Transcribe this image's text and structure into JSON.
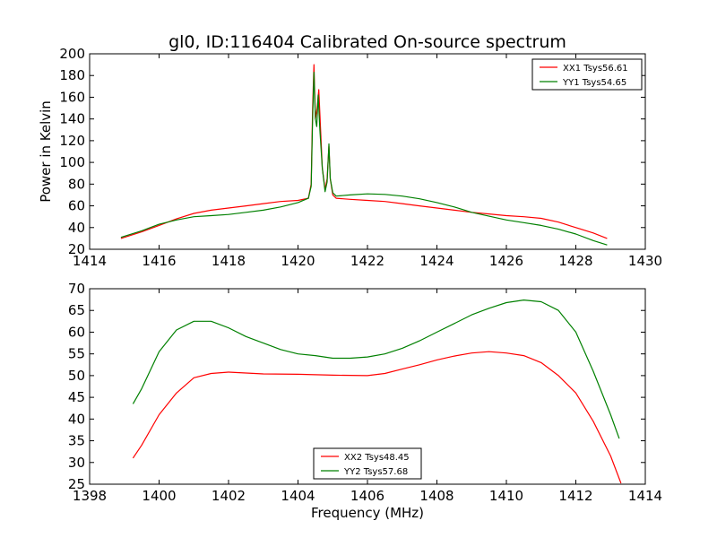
{
  "figure_title": "gl0, ID:116404 Calibrated On-source spectrum",
  "chart_data": [
    {
      "type": "line",
      "title": "gl0, ID:116404 Calibrated On-source spectrum",
      "xlabel": "",
      "ylabel": "Power in Kelvin",
      "xlim": [
        1414,
        1430
      ],
      "ylim": [
        20,
        200
      ],
      "xticks": [
        1414,
        1416,
        1418,
        1420,
        1422,
        1424,
        1426,
        1428,
        1430
      ],
      "yticks": [
        20,
        40,
        60,
        80,
        100,
        120,
        140,
        160,
        180,
        200
      ],
      "grid": false,
      "legend_position": "top-right",
      "series": [
        {
          "name": "XX1 Tsys56.61",
          "color": "#ff0000",
          "points": [
            [
              1414.9,
              30
            ],
            [
              1415.5,
              36
            ],
            [
              1416,
              42
            ],
            [
              1416.5,
              48
            ],
            [
              1417,
              53
            ],
            [
              1417.5,
              56
            ],
            [
              1418,
              58
            ],
            [
              1418.5,
              60
            ],
            [
              1419,
              62
            ],
            [
              1419.5,
              64
            ],
            [
              1420,
              65
            ],
            [
              1420.3,
              67
            ],
            [
              1420.38,
              80
            ],
            [
              1420.42,
              150
            ],
            [
              1420.46,
              190
            ],
            [
              1420.5,
              140
            ],
            [
              1420.55,
              150
            ],
            [
              1420.6,
              167
            ],
            [
              1420.65,
              130
            ],
            [
              1420.7,
              95
            ],
            [
              1420.78,
              75
            ],
            [
              1420.84,
              85
            ],
            [
              1420.89,
              115
            ],
            [
              1420.93,
              85
            ],
            [
              1421,
              70
            ],
            [
              1421.1,
              67
            ],
            [
              1421.5,
              66
            ],
            [
              1422,
              65
            ],
            [
              1422.5,
              64
            ],
            [
              1423,
              62
            ],
            [
              1423.5,
              60
            ],
            [
              1424,
              58
            ],
            [
              1424.5,
              56
            ],
            [
              1425,
              54
            ],
            [
              1425.5,
              52.5
            ],
            [
              1426,
              51
            ],
            [
              1426.5,
              50
            ],
            [
              1427,
              48.5
            ],
            [
              1427.5,
              45
            ],
            [
              1428,
              40
            ],
            [
              1428.5,
              35
            ],
            [
              1428.9,
              30
            ]
          ]
        },
        {
          "name": "YY1 Tsys54.65",
          "color": "#008000",
          "points": [
            [
              1414.9,
              31
            ],
            [
              1415.5,
              37
            ],
            [
              1416,
              43
            ],
            [
              1416.5,
              47
            ],
            [
              1417,
              50
            ],
            [
              1417.5,
              51
            ],
            [
              1418,
              52
            ],
            [
              1418.5,
              54
            ],
            [
              1419,
              56
            ],
            [
              1419.5,
              59
            ],
            [
              1420,
              63
            ],
            [
              1420.3,
              67
            ],
            [
              1420.38,
              78
            ],
            [
              1420.42,
              140
            ],
            [
              1420.46,
              183
            ],
            [
              1420.5,
              140
            ],
            [
              1420.54,
              133
            ],
            [
              1420.58,
              162
            ],
            [
              1420.63,
              130
            ],
            [
              1420.7,
              95
            ],
            [
              1420.78,
              73
            ],
            [
              1420.84,
              82
            ],
            [
              1420.89,
              117
            ],
            [
              1420.93,
              85
            ],
            [
              1421,
              72
            ],
            [
              1421.1,
              69
            ],
            [
              1421.5,
              70
            ],
            [
              1422,
              71
            ],
            [
              1422.5,
              70.5
            ],
            [
              1423,
              69
            ],
            [
              1423.5,
              66.5
            ],
            [
              1424,
              63
            ],
            [
              1424.5,
              59
            ],
            [
              1425,
              54
            ],
            [
              1425.5,
              50.5
            ],
            [
              1426,
              47
            ],
            [
              1426.5,
              44.5
            ],
            [
              1427,
              42
            ],
            [
              1427.5,
              38.5
            ],
            [
              1428,
              34
            ],
            [
              1428.5,
              28
            ],
            [
              1428.9,
              24
            ]
          ]
        }
      ]
    },
    {
      "type": "line",
      "title": "",
      "xlabel": "Frequency (MHz)",
      "ylabel": "",
      "xlim": [
        1398,
        1414
      ],
      "ylim": [
        25,
        70
      ],
      "xticks": [
        1398,
        1400,
        1402,
        1404,
        1406,
        1408,
        1410,
        1412,
        1414
      ],
      "yticks": [
        25,
        30,
        35,
        40,
        45,
        50,
        55,
        60,
        65,
        70
      ],
      "grid": false,
      "legend_position": "bottom-center",
      "series": [
        {
          "name": "XX2 Tsys48.45",
          "color": "#ff0000",
          "points": [
            [
              1399.25,
              31
            ],
            [
              1399.5,
              34
            ],
            [
              1400,
              41
            ],
            [
              1400.5,
              46
            ],
            [
              1401,
              49.5
            ],
            [
              1401.5,
              50.5
            ],
            [
              1402,
              50.8
            ],
            [
              1403,
              50.4
            ],
            [
              1404,
              50.3
            ],
            [
              1405,
              50.1
            ],
            [
              1406,
              50
            ],
            [
              1406.5,
              50.5
            ],
            [
              1407,
              51.5
            ],
            [
              1407.5,
              52.5
            ],
            [
              1408,
              53.6
            ],
            [
              1408.5,
              54.5
            ],
            [
              1409,
              55.2
            ],
            [
              1409.5,
              55.5
            ],
            [
              1410,
              55.2
            ],
            [
              1410.5,
              54.6
            ],
            [
              1411,
              53
            ],
            [
              1411.5,
              50
            ],
            [
              1412,
              46
            ],
            [
              1412.5,
              39.5
            ],
            [
              1413,
              31.5
            ],
            [
              1413.3,
              25.2
            ]
          ]
        },
        {
          "name": "YY2 Tsys57.68",
          "color": "#008000",
          "points": [
            [
              1399.25,
              43.5
            ],
            [
              1399.5,
              47
            ],
            [
              1400,
              55.5
            ],
            [
              1400.5,
              60.5
            ],
            [
              1401,
              62.5
            ],
            [
              1401.5,
              62.5
            ],
            [
              1402,
              61
            ],
            [
              1402.5,
              59
            ],
            [
              1403,
              57.5
            ],
            [
              1403.5,
              56
            ],
            [
              1404,
              55
            ],
            [
              1404.5,
              54.6
            ],
            [
              1405,
              54
            ],
            [
              1405.5,
              54
            ],
            [
              1406,
              54.3
            ],
            [
              1406.5,
              55
            ],
            [
              1407,
              56.3
            ],
            [
              1407.5,
              58
            ],
            [
              1408,
              60
            ],
            [
              1408.5,
              62
            ],
            [
              1409,
              64
            ],
            [
              1409.5,
              65.5
            ],
            [
              1410,
              66.8
            ],
            [
              1410.5,
              67.4
            ],
            [
              1411,
              67
            ],
            [
              1411.5,
              65
            ],
            [
              1412,
              60
            ],
            [
              1412.5,
              51
            ],
            [
              1413,
              41
            ],
            [
              1413.25,
              35.5
            ]
          ]
        }
      ]
    }
  ]
}
